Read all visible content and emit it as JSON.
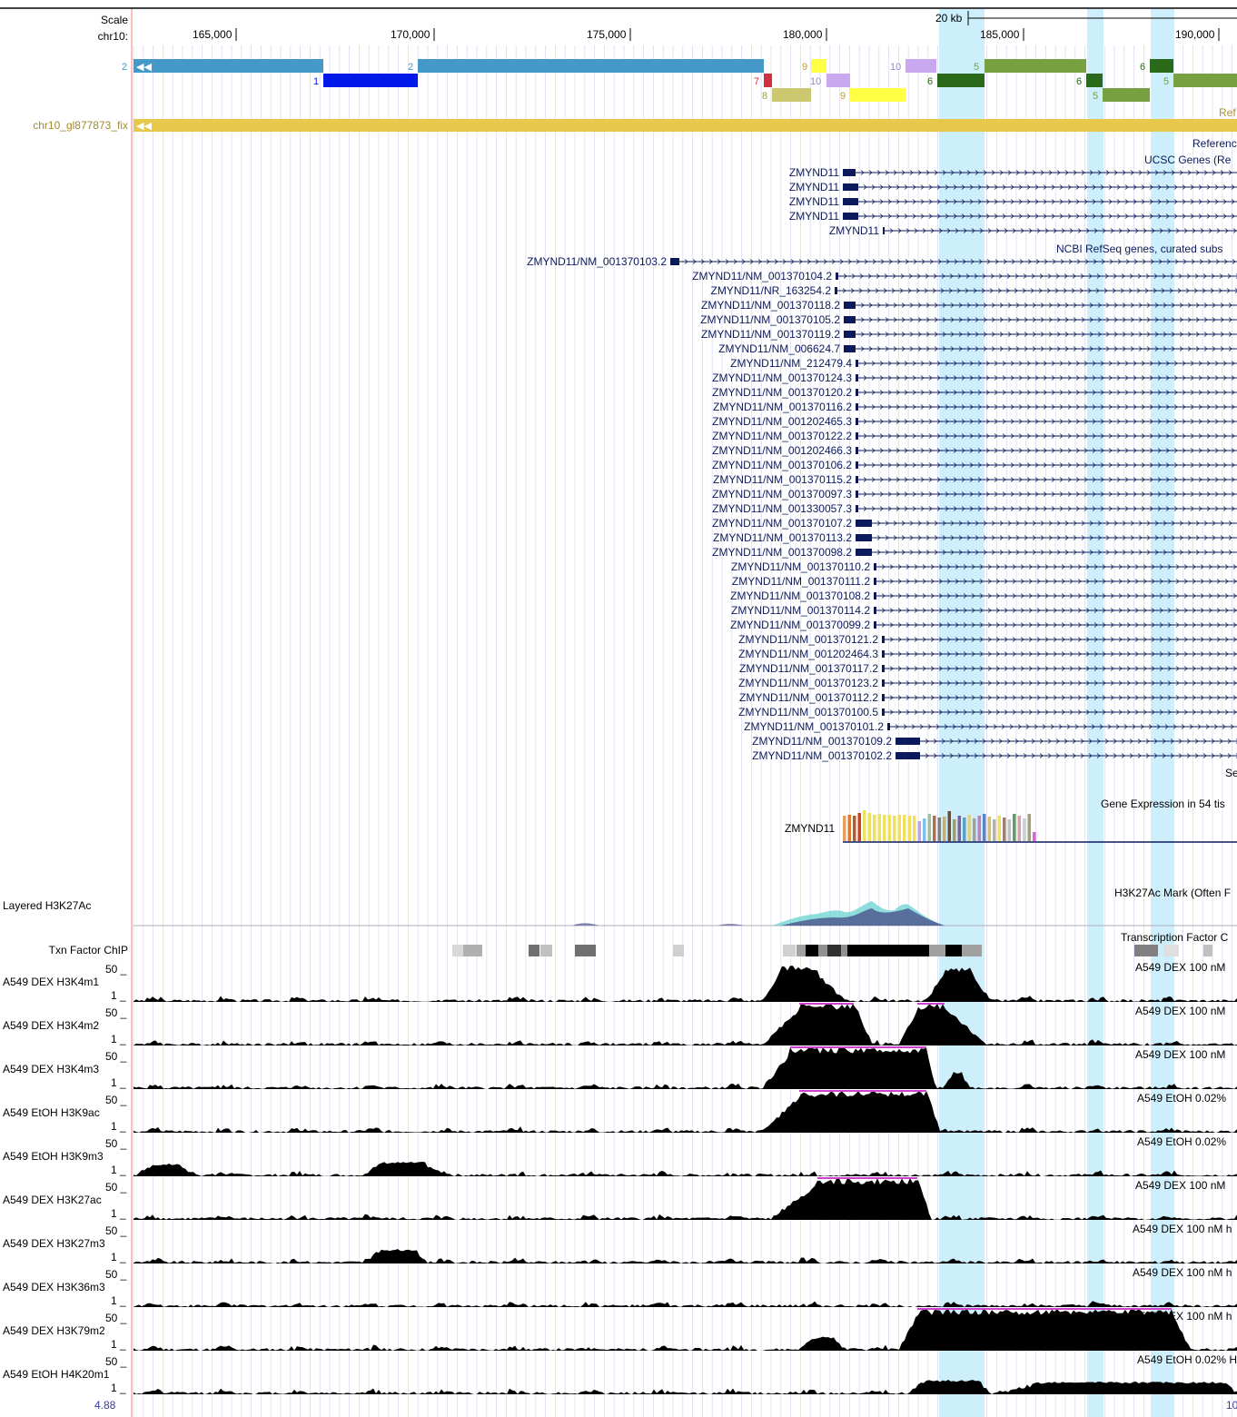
{
  "scale_label": "Scale",
  "chrom_label": "chr10:",
  "scale_bar_label": "20 kb",
  "ruler_ticks": [
    "165,000",
    "170,000",
    "175,000",
    "180,000",
    "185,000",
    "190,000"
  ],
  "alt_haplotype": {
    "label": "chr10_gl877873_fix",
    "segment_numbers_row1": [
      "2",
      "2",
      "9",
      "10",
      "5",
      "6"
    ],
    "segment_numbers_row2": [
      "1",
      "7",
      "10",
      "6",
      "6"
    ],
    "segment_numbers_row3": [
      "8",
      "9",
      "5",
      "5"
    ],
    "right_caption": "Ref"
  },
  "track_captions": {
    "reference": "Referenc",
    "ucsc_genes": "UCSC Genes (Re",
    "refseq": "NCBI RefSeq genes, curated subs",
    "se": "Se",
    "gtex": "Gene Expression in 54 tis",
    "h3k27ac_layered": "H3K27Ac Mark (Often F",
    "txn_factor": "Transcription Factor C"
  },
  "ucsc_genes": [
    "ZMYND11",
    "ZMYND11",
    "ZMYND11",
    "ZMYND11",
    "ZMYND11"
  ],
  "refseq_genes": [
    "ZMYND11/NM_001370103.2",
    "ZMYND11/NM_001370104.2",
    "ZMYND11/NR_163254.2",
    "ZMYND11/NM_001370118.2",
    "ZMYND11/NM_001370105.2",
    "ZMYND11/NM_001370119.2",
    "ZMYND11/NM_006624.7",
    "ZMYND11/NM_212479.4",
    "ZMYND11/NM_001370124.3",
    "ZMYND11/NM_001370120.2",
    "ZMYND11/NM_001370116.2",
    "ZMYND11/NM_001202465.3",
    "ZMYND11/NM_001370122.2",
    "ZMYND11/NM_001202466.3",
    "ZMYND11/NM_001370106.2",
    "ZMYND11/NM_001370115.2",
    "ZMYND11/NM_001370097.3",
    "ZMYND11/NM_001330057.3",
    "ZMYND11/NM_001370107.2",
    "ZMYND11/NM_001370113.2",
    "ZMYND11/NM_001370098.2",
    "ZMYND11/NM_001370110.2",
    "ZMYND11/NM_001370111.2",
    "ZMYND11/NM_001370108.2",
    "ZMYND11/NM_001370114.2",
    "ZMYND11/NM_001370099.2",
    "ZMYND11/NM_001370121.2",
    "ZMYND11/NM_001202464.3",
    "ZMYND11/NM_001370117.2",
    "ZMYND11/NM_001370123.2",
    "ZMYND11/NM_001370112.2",
    "ZMYND11/NM_001370100.5",
    "ZMYND11/NM_001370101.2",
    "ZMYND11/NM_001370109.2",
    "ZMYND11/NM_001370102.2"
  ],
  "gtex_gene": "ZMYND11",
  "layered_label": "Layered H3K27Ac",
  "txn_label": "Txn Factor ChIP",
  "histone_tracks": [
    {
      "label": "A549 DEX H3K4m1",
      "max": "50 _",
      "min": "1 _",
      "caption": "A549 DEX 100 nM"
    },
    {
      "label": "A549 DEX H3K4m2",
      "max": "50 _",
      "min": "1 _",
      "caption": "A549 DEX 100 nM"
    },
    {
      "label": "A549 DEX H3K4m3",
      "max": "50 _",
      "min": "1 _",
      "caption": "A549 DEX 100 nM"
    },
    {
      "label": "A549 EtOH H3K9ac",
      "max": "50 _",
      "min": "1 _",
      "caption": "A549 EtOH 0.02%"
    },
    {
      "label": "A549 EtOH H3K9m3",
      "max": "50 _",
      "min": "1 _",
      "caption": "A549 EtOH 0.02%"
    },
    {
      "label": "A549 DEX H3K27ac",
      "max": "50 _",
      "min": "1 _",
      "caption": "A549 DEX 100 nM"
    },
    {
      "label": "A549 DEX H3K27m3",
      "max": "50 _",
      "min": "1 _",
      "caption": "A549 DEX 100 nM h"
    },
    {
      "label": "A549 DEX H3K36m3",
      "max": "50 _",
      "min": "1 _",
      "caption": "A549 DEX 100 nM h"
    },
    {
      "label": "A549 DEX H3K79m2",
      "max": "50 _",
      "min": "1 _",
      "caption": "A549 DEX 100 nM h"
    },
    {
      "label": "A549 EtOH H4K20m1",
      "max": "50 _",
      "min": "1 _",
      "caption": "A549 EtOH 0.02% H"
    }
  ],
  "bottom_left_value": "4.88",
  "bottom_right_value": "10",
  "colors": {
    "highlight": "#cdeefb",
    "grid": "#d8d8f0",
    "gene": "#0c1a5c",
    "alt": "#e8c84a",
    "refline": "#f08080"
  }
}
